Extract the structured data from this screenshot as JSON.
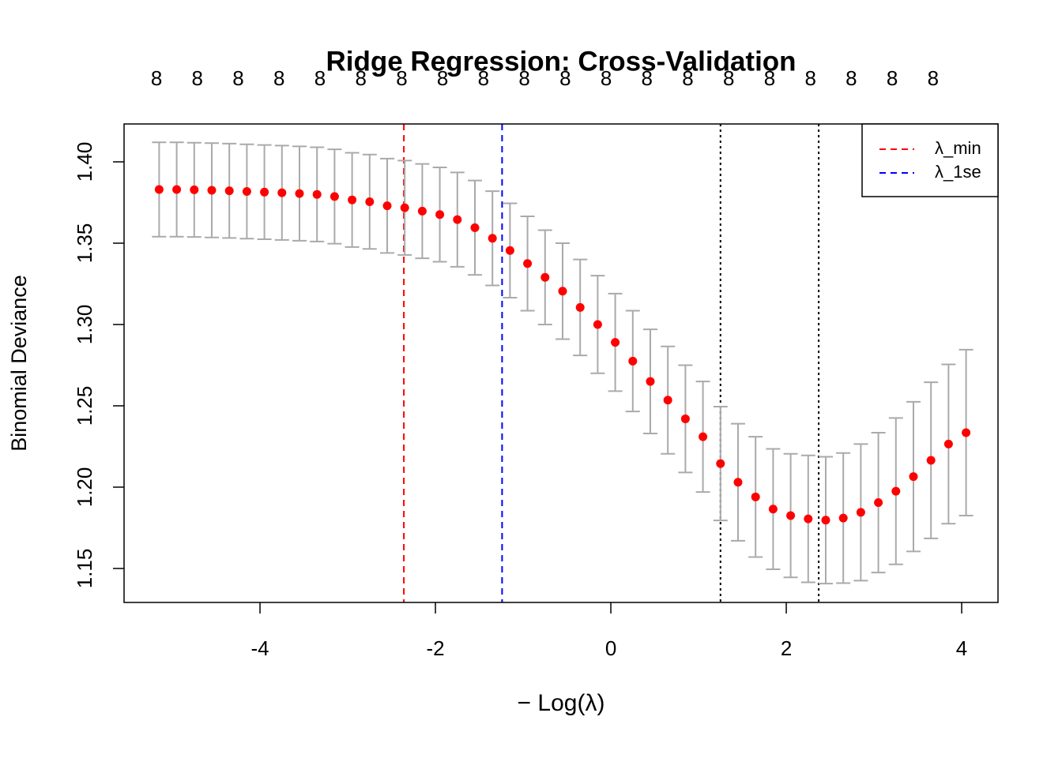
{
  "chart_data": {
    "type": "errorbar",
    "title": "Ridge Regression: Cross-Validation",
    "x_label": "− Log(λ)",
    "y_label": "Binomial Deviance",
    "x": [
      -5.15,
      -4.95,
      -4.75,
      -4.55,
      -4.35,
      -4.15,
      -3.95,
      -3.75,
      -3.55,
      -3.35,
      -3.15,
      -2.95,
      -2.75,
      -2.55,
      -2.35,
      -2.15,
      -1.95,
      -1.75,
      -1.55,
      -1.35,
      -1.15,
      -0.95,
      -0.75,
      -0.55,
      -0.35,
      -0.15,
      0.05,
      0.25,
      0.45,
      0.65,
      0.85,
      1.05,
      1.25,
      1.45,
      1.65,
      1.85,
      2.05,
      2.25,
      2.45,
      2.65,
      2.85,
      3.05,
      3.25,
      3.45,
      3.65,
      3.85,
      4.05
    ],
    "series": [
      {
        "color": "#ff0000",
        "error_color": "#aaaaaa",
        "values": [
          1.383,
          1.383,
          1.3828,
          1.3825,
          1.3822,
          1.3818,
          1.3814,
          1.381,
          1.3805,
          1.38,
          1.3787,
          1.3766,
          1.3755,
          1.373,
          1.3718,
          1.3697,
          1.3676,
          1.3645,
          1.3595,
          1.353,
          1.3455,
          1.3375,
          1.329,
          1.3205,
          1.3105,
          1.3,
          1.289,
          1.2775,
          1.265,
          1.2535,
          1.242,
          1.231,
          1.2145,
          1.203,
          1.194,
          1.1865,
          1.1825,
          1.1805,
          1.1797,
          1.181,
          1.1845,
          1.1905,
          1.1975,
          1.2065,
          1.2165,
          1.2265,
          1.2335
        ],
        "errors": [
          0.029,
          0.029,
          0.029,
          0.029,
          0.029,
          0.029,
          0.029,
          0.029,
          0.029,
          0.029,
          0.029,
          0.029,
          0.029,
          0.029,
          0.029,
          0.029,
          0.029,
          0.029,
          0.029,
          0.029,
          0.029,
          0.029,
          0.029,
          0.0295,
          0.0295,
          0.03,
          0.03,
          0.031,
          0.032,
          0.033,
          0.033,
          0.034,
          0.035,
          0.036,
          0.037,
          0.037,
          0.038,
          0.039,
          0.039,
          0.04,
          0.042,
          0.043,
          0.045,
          0.046,
          0.048,
          0.049,
          0.051
        ]
      }
    ],
    "xlim": [
      -5.55,
      4.414
    ],
    "ylim": [
      1.1291,
      1.4233
    ],
    "xticks": [
      -4,
      -2,
      0,
      2,
      4
    ],
    "yticks": [
      {
        "value": 1.4,
        "label": "1.40"
      },
      1.35,
      {
        "value": 1.3,
        "label": "1.30"
      },
      1.25,
      {
        "value": 1.2,
        "label": "1.20"
      },
      1.15
    ],
    "top_axis": {
      "x": [
        -5.18,
        -4.714,
        -4.248,
        -3.782,
        -3.316,
        -2.85,
        -2.384,
        -1.918,
        -1.452,
        -0.986,
        -0.52,
        -0.054,
        0.412,
        0.878,
        1.344,
        1.81,
        2.276,
        2.742,
        3.208,
        3.674
      ],
      "counts": [
        8,
        8,
        8,
        8,
        8,
        8,
        8,
        8,
        8,
        8,
        8,
        8,
        8,
        8,
        8,
        8,
        8,
        8,
        8,
        8
      ]
    },
    "vlines": [
      {
        "x": -2.36,
        "color": "#ff0000",
        "style": "dashed",
        "name": "λ_min"
      },
      {
        "x": -1.24,
        "color": "#0000ff",
        "style": "dashed",
        "name": "λ_1se"
      },
      {
        "x": 1.25,
        "color": "#000000",
        "style": "dotted"
      },
      {
        "x": 2.37,
        "color": "#000000",
        "style": "dotted"
      }
    ],
    "legend_position": "topright"
  }
}
